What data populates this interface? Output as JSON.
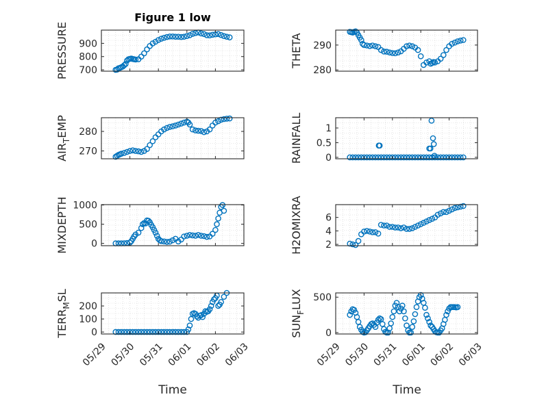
{
  "figure": {
    "title": "Figure 1 low",
    "xlabel": "Time",
    "x_ticks": [
      "05/29",
      "05/30",
      "05/31",
      "06/01",
      "06/02",
      "06/03"
    ],
    "marker_color": "#0072BD"
  },
  "chart_data": [
    {
      "type": "scatter",
      "ylabel": "PRESSURE",
      "title": "Figure 1 low",
      "ylim": [
        690,
        1000
      ],
      "yticks": [
        700,
        800,
        900
      ],
      "x": [
        0.5,
        0.55,
        0.6,
        0.65,
        0.7,
        0.75,
        0.8,
        0.85,
        0.9,
        0.95,
        1.0,
        1.05,
        1.1,
        1.15,
        1.2,
        1.3,
        1.4,
        1.5,
        1.6,
        1.7,
        1.8,
        1.9,
        2.0,
        2.1,
        2.2,
        2.3,
        2.4,
        2.5,
        2.6,
        2.7,
        2.8,
        2.9,
        3.0,
        3.1,
        3.2,
        3.3,
        3.4,
        3.5,
        3.6,
        3.7,
        3.8,
        3.9,
        4.0,
        4.1,
        4.2,
        4.3,
        4.4,
        4.5
      ],
      "y": [
        700,
        702,
        712,
        715,
        720,
        725,
        735,
        745,
        770,
        780,
        783,
        785,
        782,
        780,
        778,
        780,
        800,
        825,
        855,
        880,
        900,
        912,
        925,
        935,
        942,
        948,
        952,
        952,
        950,
        950,
        948,
        950,
        955,
        962,
        972,
        978,
        982,
        975,
        970,
        962,
        960,
        965,
        968,
        970,
        963,
        955,
        950,
        945
      ]
    },
    {
      "type": "scatter",
      "ylabel": "THETA",
      "ylim": [
        279.5,
        296
      ],
      "yticks": [
        280,
        290
      ],
      "x": [
        0.5,
        0.55,
        0.6,
        0.65,
        0.7,
        0.75,
        0.8,
        0.85,
        0.9,
        0.95,
        1.0,
        1.1,
        1.2,
        1.3,
        1.4,
        1.5,
        1.6,
        1.7,
        1.8,
        1.9,
        2.0,
        2.1,
        2.2,
        2.3,
        2.4,
        2.5,
        2.6,
        2.7,
        2.8,
        2.9,
        3.0,
        3.1,
        3.2,
        3.3,
        3.35,
        3.4,
        3.45,
        3.5,
        3.6,
        3.7,
        3.8,
        3.9,
        4.0,
        4.1,
        4.2,
        4.3,
        4.4,
        4.5
      ],
      "y": [
        295.3,
        295.2,
        295.0,
        295.3,
        295.5,
        295.0,
        294.0,
        293.0,
        292.0,
        290.5,
        290.0,
        289.8,
        289.6,
        289.8,
        289.5,
        289.2,
        288.0,
        287.4,
        287.3,
        287.0,
        286.8,
        286.7,
        287.0,
        287.5,
        288.5,
        289.5,
        289.8,
        289.5,
        289.0,
        288.0,
        285.5,
        282.0,
        283.0,
        283.5,
        282.5,
        282.8,
        283.2,
        283.0,
        283.5,
        284.5,
        286.0,
        288.0,
        289.5,
        290.5,
        291.0,
        291.5,
        291.8,
        292.0
      ]
    },
    {
      "type": "scatter",
      "ylabel": "AIR_TEMP",
      "ylim": [
        266,
        287
      ],
      "yticks": [
        270,
        280
      ],
      "x": [
        0.5,
        0.55,
        0.6,
        0.65,
        0.7,
        0.8,
        0.9,
        1.0,
        1.1,
        1.2,
        1.3,
        1.4,
        1.5,
        1.6,
        1.7,
        1.8,
        1.9,
        2.0,
        2.1,
        2.2,
        2.3,
        2.4,
        2.5,
        2.6,
        2.7,
        2.8,
        2.9,
        3.0,
        3.05,
        3.1,
        3.2,
        3.3,
        3.4,
        3.5,
        3.6,
        3.7,
        3.8,
        3.9,
        4.0,
        4.1,
        4.2,
        4.3,
        4.4,
        4.5
      ],
      "y": [
        267.0,
        267.5,
        268.0,
        268.3,
        268.6,
        269.0,
        269.5,
        270.0,
        270.3,
        270.0,
        269.8,
        269.5,
        270.0,
        271.0,
        273.0,
        275.0,
        277.0,
        278.5,
        280.0,
        281.0,
        281.8,
        282.3,
        282.6,
        283.0,
        283.5,
        284.0,
        284.5,
        285.0,
        284.6,
        283.5,
        281.0,
        280.5,
        280.3,
        280.2,
        279.6,
        280.0,
        281.0,
        283.0,
        284.5,
        285.2,
        286.0,
        286.3,
        286.5,
        286.6
      ]
    },
    {
      "type": "scatter",
      "ylabel": "RAINFALL",
      "ylim": [
        -0.05,
        1.35
      ],
      "yticks": [
        0,
        0.5,
        1
      ],
      "ytick_labels": [
        "0",
        "0.5",
        "1"
      ],
      "x": [
        0.5,
        0.6,
        0.7,
        0.8,
        0.9,
        1.0,
        1.1,
        1.2,
        1.3,
        1.4,
        1.5,
        1.6,
        1.7,
        1.8,
        1.9,
        2.0,
        2.1,
        2.2,
        2.3,
        2.4,
        2.5,
        2.6,
        2.7,
        2.8,
        2.9,
        3.0,
        3.1,
        3.2,
        3.3,
        3.4,
        3.5,
        3.6,
        3.7,
        3.8,
        3.9,
        4.0,
        4.1,
        4.2,
        4.3,
        4.4,
        4.5,
        1.52,
        1.55,
        3.3,
        3.34,
        3.38,
        3.43,
        3.46,
        3.48
      ],
      "y": [
        0,
        0,
        0,
        0,
        0,
        0,
        0,
        0,
        0,
        0,
        0,
        0,
        0,
        0,
        0,
        0,
        0,
        0,
        0,
        0,
        0,
        0,
        0,
        0,
        0,
        0,
        0,
        0,
        0,
        0,
        0,
        0,
        0,
        0,
        0,
        0,
        0,
        0,
        0,
        0,
        0,
        0.4,
        0.4,
        0.3,
        0.3,
        1.25,
        0.65,
        0.45,
        0.05
      ]
    },
    {
      "type": "scatter",
      "ylabel": "MIXDEPTH",
      "ylim": [
        -60,
        1010
      ],
      "yticks": [
        0,
        500,
        1000
      ],
      "x": [
        0.5,
        0.6,
        0.7,
        0.8,
        0.9,
        1.0,
        1.05,
        1.1,
        1.15,
        1.2,
        1.3,
        1.4,
        1.45,
        1.5,
        1.55,
        1.6,
        1.65,
        1.7,
        1.75,
        1.8,
        1.85,
        1.9,
        1.95,
        2.0,
        2.05,
        2.1,
        2.2,
        2.3,
        2.4,
        2.5,
        2.6,
        2.7,
        2.8,
        2.9,
        3.0,
        3.1,
        3.2,
        3.3,
        3.4,
        3.5,
        3.6,
        3.7,
        3.8,
        3.9,
        4.0,
        4.05,
        4.1,
        4.15,
        4.2,
        4.25,
        4.3
      ],
      "y": [
        0,
        0,
        0,
        5,
        10,
        20,
        60,
        120,
        180,
        230,
        280,
        400,
        500,
        530,
        520,
        600,
        590,
        550,
        480,
        420,
        350,
        280,
        200,
        120,
        80,
        60,
        50,
        40,
        45,
        80,
        120,
        50,
        100,
        180,
        200,
        220,
        210,
        200,
        220,
        200,
        190,
        170,
        180,
        250,
        350,
        500,
        650,
        800,
        950,
        1000,
        850
      ]
    },
    {
      "type": "scatter",
      "ylabel": "H2OMIXRA",
      "ylim": [
        1.8,
        7.9
      ],
      "yticks": [
        2,
        4,
        6
      ],
      "x": [
        0.5,
        0.6,
        0.7,
        0.8,
        0.9,
        1.0,
        1.1,
        1.2,
        1.3,
        1.4,
        1.5,
        1.6,
        1.7,
        1.8,
        1.9,
        2.0,
        2.1,
        2.2,
        2.3,
        2.4,
        2.5,
        2.6,
        2.7,
        2.8,
        2.9,
        3.0,
        3.1,
        3.2,
        3.3,
        3.4,
        3.5,
        3.6,
        3.7,
        3.8,
        3.9,
        4.0,
        4.1,
        4.2,
        4.3,
        4.4,
        4.5
      ],
      "y": [
        2.1,
        2.0,
        1.9,
        2.5,
        3.5,
        3.9,
        4.0,
        3.9,
        3.8,
        3.8,
        3.6,
        4.9,
        4.8,
        4.8,
        4.6,
        4.6,
        4.5,
        4.5,
        4.4,
        4.5,
        4.3,
        4.3,
        4.4,
        4.6,
        4.8,
        5.0,
        5.2,
        5.4,
        5.6,
        5.8,
        6.0,
        6.4,
        6.6,
        6.8,
        6.8,
        7.0,
        7.2,
        7.4,
        7.5,
        7.6,
        7.7
      ]
    },
    {
      "type": "scatter",
      "ylabel": "TERR_MSL",
      "ylim": [
        -15,
        300
      ],
      "yticks": [
        0,
        100,
        200
      ],
      "x": [
        0.5,
        0.6,
        0.7,
        0.8,
        0.9,
        1.0,
        1.1,
        1.2,
        1.3,
        1.4,
        1.5,
        1.6,
        1.7,
        1.8,
        1.9,
        2.0,
        2.1,
        2.2,
        2.3,
        2.4,
        2.5,
        2.6,
        2.7,
        2.8,
        2.9,
        3.0,
        3.05,
        3.1,
        3.15,
        3.2,
        3.25,
        3.3,
        3.35,
        3.4,
        3.45,
        3.5,
        3.55,
        3.6,
        3.65,
        3.7,
        3.75,
        3.8,
        3.85,
        3.9,
        3.95,
        4.0,
        4.05,
        4.1,
        4.15,
        4.2,
        4.3,
        4.4
      ],
      "y": [
        0,
        0,
        0,
        0,
        0,
        0,
        0,
        0,
        0,
        0,
        0,
        0,
        0,
        0,
        0,
        0,
        0,
        0,
        0,
        0,
        0,
        0,
        0,
        0,
        0,
        0,
        20,
        50,
        100,
        140,
        145,
        140,
        120,
        110,
        125,
        130,
        115,
        140,
        160,
        155,
        160,
        175,
        200,
        230,
        250,
        260,
        280,
        200,
        210,
        230,
        270,
        300
      ]
    },
    {
      "type": "scatter",
      "ylabel": "SUN_FLUX",
      "ylim": [
        -20,
        560
      ],
      "yticks": [
        0,
        500
      ],
      "x": [
        0.5,
        0.55,
        0.6,
        0.65,
        0.7,
        0.75,
        0.8,
        0.85,
        0.9,
        0.95,
        1.0,
        1.05,
        1.1,
        1.15,
        1.2,
        1.25,
        1.3,
        1.35,
        1.4,
        1.45,
        1.5,
        1.55,
        1.6,
        1.65,
        1.7,
        1.75,
        1.8,
        1.85,
        1.9,
        1.95,
        2.0,
        2.05,
        2.1,
        2.15,
        2.2,
        2.25,
        2.3,
        2.35,
        2.4,
        2.45,
        2.5,
        2.55,
        2.6,
        2.65,
        2.7,
        2.75,
        2.8,
        2.85,
        2.9,
        2.95,
        3.0,
        3.05,
        3.1,
        3.15,
        3.2,
        3.25,
        3.3,
        3.35,
        3.4,
        3.45,
        3.5,
        3.55,
        3.6,
        3.65,
        3.7,
        3.75,
        3.8,
        3.85,
        3.9,
        3.95,
        4.0,
        4.05,
        4.1,
        4.15,
        4.2,
        4.25,
        4.3
      ],
      "y": [
        250,
        300,
        330,
        320,
        280,
        220,
        150,
        80,
        40,
        10,
        0,
        5,
        30,
        60,
        90,
        120,
        130,
        110,
        80,
        140,
        180,
        200,
        190,
        120,
        50,
        10,
        0,
        0,
        60,
        130,
        220,
        300,
        380,
        420,
        360,
        300,
        340,
        380,
        300,
        200,
        100,
        30,
        0,
        0,
        80,
        160,
        260,
        360,
        440,
        500,
        530,
        480,
        420,
        350,
        250,
        200,
        150,
        100,
        80,
        50,
        20,
        5,
        0,
        0,
        30,
        60,
        120,
        180,
        250,
        300,
        340,
        360,
        360,
        360,
        360,
        355,
        360
      ]
    }
  ]
}
